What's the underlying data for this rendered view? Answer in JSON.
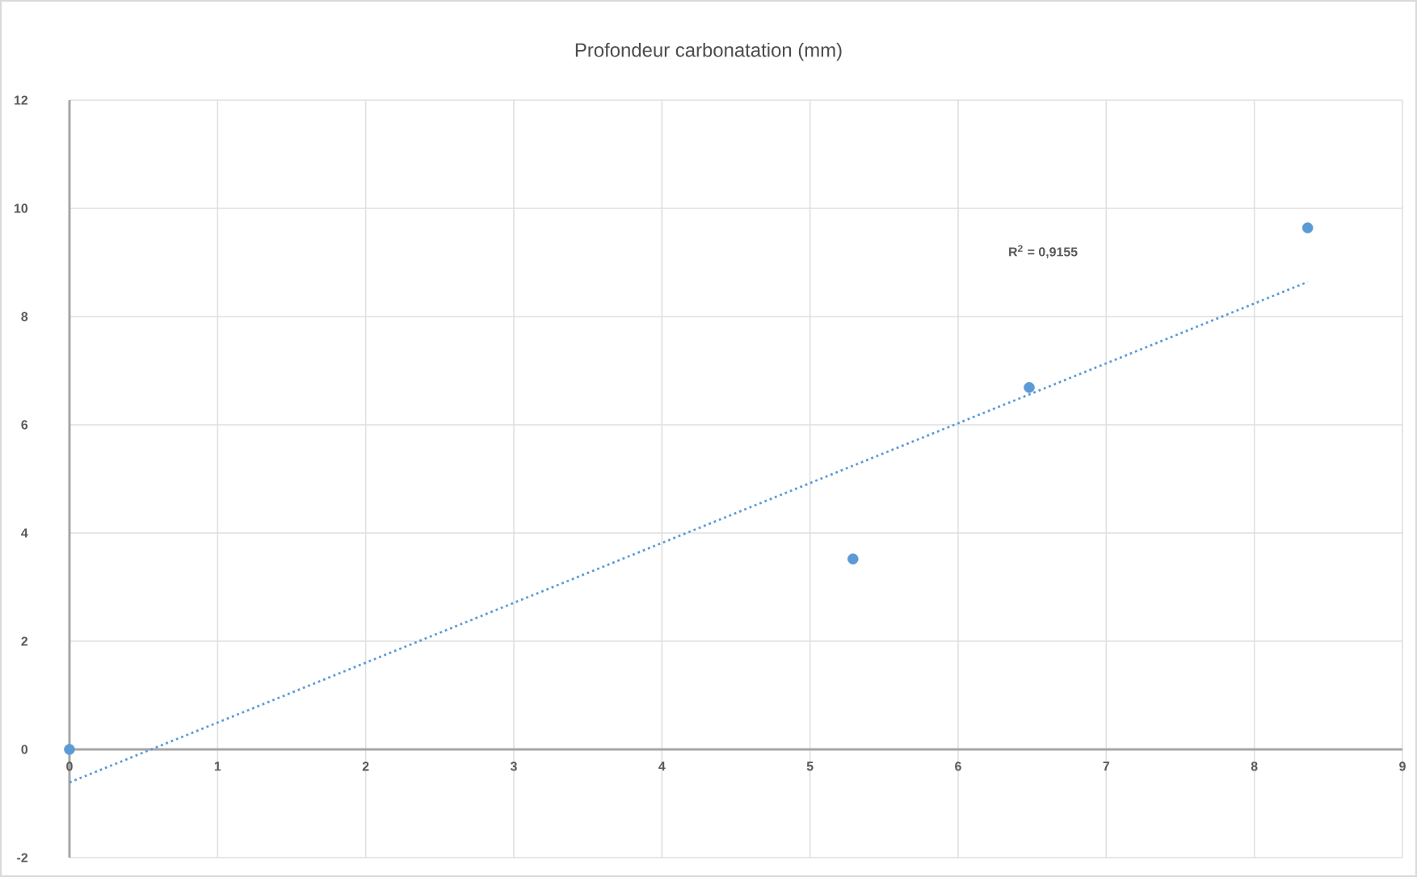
{
  "chart_data": {
    "type": "scatter",
    "title": "Profondeur  carbonatation (mm)",
    "series": [
      {
        "type": "scatter",
        "color": "#5b9bd5",
        "x": [
          0,
          5.29,
          6.48,
          8.36
        ],
        "values": [
          0,
          3.52,
          6.69,
          9.64
        ],
        "marker": "circle"
      },
      {
        "type": "line",
        "color": "#5b9bd5",
        "x": [
          0,
          8.36
        ],
        "values": [
          -0.61,
          8.64
        ],
        "line_style": "dotted",
        "marker": "none"
      }
    ],
    "annotations": [
      "R$^{2}$ = 0,9155"
    ],
    "xlim": [
      0,
      9
    ],
    "ylim": [
      -2,
      12
    ],
    "xticks": [
      0,
      1,
      2,
      3,
      4,
      5,
      6,
      7,
      8,
      9
    ],
    "yticks": [
      -2,
      0,
      2,
      4,
      6,
      8,
      10,
      12
    ],
    "grid": true
  }
}
